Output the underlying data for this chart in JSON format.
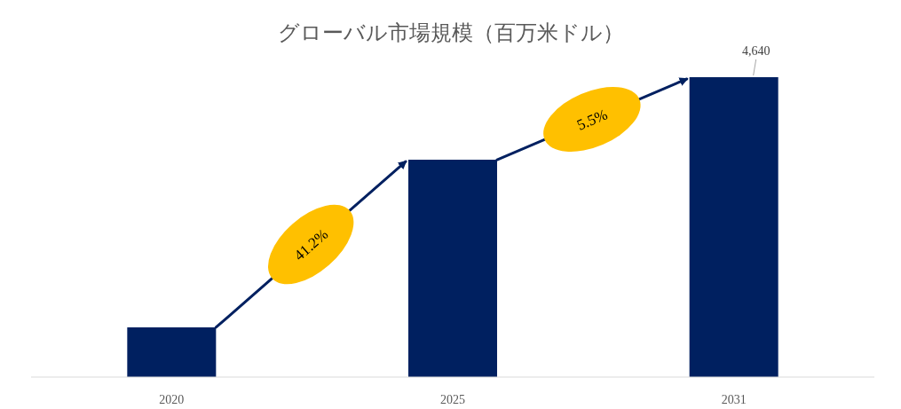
{
  "chart_data": {
    "type": "bar",
    "title": "グローバル市場規模（百万米ドル）",
    "categories": [
      "2020",
      "2025",
      "2031"
    ],
    "values": [
      769,
      3363,
      4640
    ],
    "color": "#002060",
    "value_labels": [
      null,
      null,
      "4,640"
    ],
    "annotations": [
      "41.2%",
      "5.5%"
    ]
  }
}
